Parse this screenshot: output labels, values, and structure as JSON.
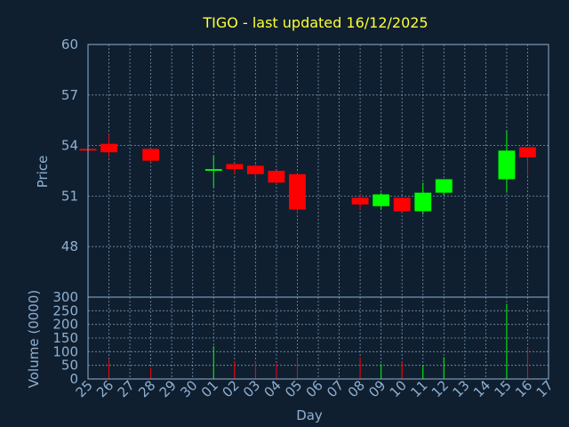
{
  "chart_data": {
    "type": "candlestick",
    "title": "TIGO - last updated 16/12/2025",
    "xlabel": "Day",
    "price_ylabel": "Price",
    "volume_ylabel": "Volume (0000)",
    "price_ylim": [
      45,
      60
    ],
    "price_ticks": [
      "48",
      "51",
      "54",
      "57",
      "60"
    ],
    "volume_ylim": [
      0,
      300
    ],
    "volume_ticks": [
      "0",
      "50",
      "100",
      "150",
      "200",
      "250",
      "300"
    ],
    "x_labels": [
      "25",
      "26",
      "27",
      "28",
      "29",
      "30",
      "01",
      "02",
      "03",
      "04",
      "05",
      "06",
      "07",
      "08",
      "09",
      "10",
      "11",
      "12",
      "13",
      "14",
      "15",
      "16",
      "17"
    ],
    "grid": true,
    "candles": [
      {
        "day": "25",
        "open": 53.8,
        "close": 53.7,
        "high": 53.8,
        "low": 53.7,
        "volume": 5
      },
      {
        "day": "26",
        "open": 54.1,
        "close": 53.6,
        "high": 54.7,
        "low": 53.3,
        "volume": 70
      },
      {
        "day": "28",
        "open": 53.8,
        "close": 53.1,
        "high": 53.8,
        "low": 53.0,
        "volume": 40
      },
      {
        "day": "01",
        "open": 52.5,
        "close": 52.6,
        "high": 53.4,
        "low": 51.5,
        "volume": 120
      },
      {
        "day": "02",
        "open": 52.9,
        "close": 52.6,
        "high": 52.9,
        "low": 52.3,
        "volume": 65
      },
      {
        "day": "03",
        "open": 52.8,
        "close": 52.3,
        "high": 52.9,
        "low": 51.9,
        "volume": 65
      },
      {
        "day": "04",
        "open": 52.5,
        "close": 51.8,
        "high": 52.5,
        "low": 51.7,
        "volume": 55
      },
      {
        "day": "05",
        "open": 52.3,
        "close": 50.2,
        "high": 52.4,
        "low": 50.0,
        "volume": 80
      },
      {
        "day": "08",
        "open": 50.9,
        "close": 50.5,
        "high": 51.1,
        "low": 50.2,
        "volume": 80
      },
      {
        "day": "09",
        "open": 50.4,
        "close": 51.1,
        "high": 51.2,
        "low": 50.2,
        "volume": 55
      },
      {
        "day": "10",
        "open": 50.9,
        "close": 50.1,
        "high": 50.9,
        "low": 50.0,
        "volume": 65
      },
      {
        "day": "11",
        "open": 50.1,
        "close": 51.2,
        "high": 51.8,
        "low": 49.9,
        "volume": 50
      },
      {
        "day": "12",
        "open": 51.2,
        "close": 52.0,
        "high": 52.0,
        "low": 51.0,
        "volume": 80
      },
      {
        "day": "15",
        "open": 52.0,
        "close": 53.7,
        "high": 54.9,
        "low": 51.2,
        "volume": 275
      },
      {
        "day": "16",
        "open": 53.9,
        "close": 53.3,
        "high": 53.9,
        "low": 52.2,
        "volume": 115
      }
    ],
    "colors": {
      "background": "#0f1f30",
      "frame": "#8fb0d0",
      "up": "#00ff00",
      "down": "#ff0000",
      "title": "#ffff33",
      "text": "#8fb0d0"
    }
  }
}
